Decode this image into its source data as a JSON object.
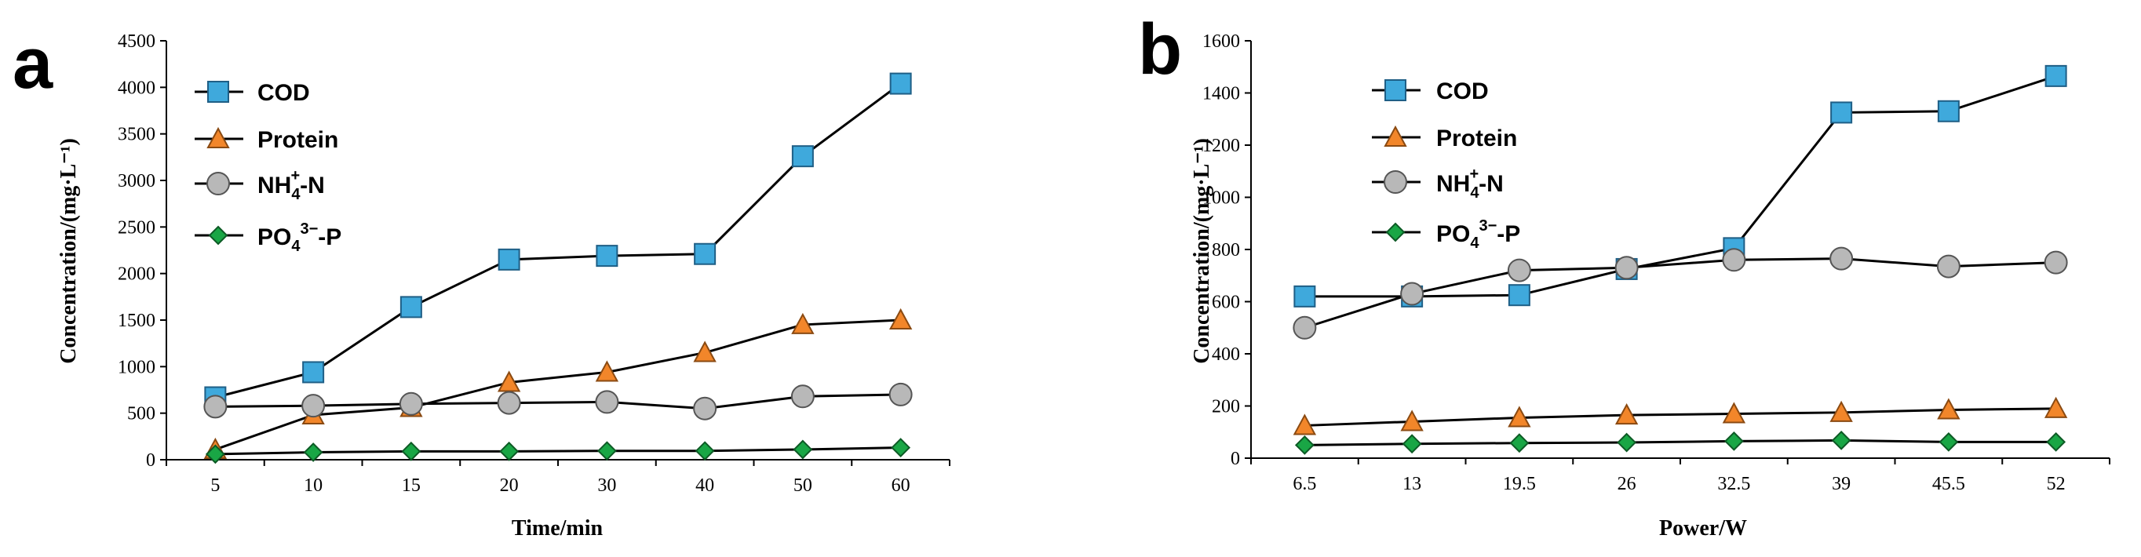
{
  "chart_data": [
    {
      "type": "line",
      "panel_letter": "a",
      "xlabel": "Time/min",
      "ylabel": "Concentration/(mg·L⁻¹)",
      "categories": [
        "5",
        "10",
        "15",
        "20",
        "30",
        "40",
        "50",
        "60"
      ],
      "ylim": [
        0,
        4500
      ],
      "yticks": [
        0,
        500,
        1000,
        1500,
        2000,
        2500,
        3000,
        3500,
        4000,
        4500
      ],
      "legend_position": "top-left",
      "series": [
        {
          "name": "COD",
          "marker": "square",
          "color": "#3fa9dc",
          "values": [
            670,
            940,
            1640,
            2150,
            2190,
            2210,
            3260,
            4040
          ]
        },
        {
          "name": "Protein",
          "marker": "triangle",
          "color": "#f2862a",
          "values": [
            110,
            480,
            560,
            830,
            940,
            1150,
            1450,
            1500
          ]
        },
        {
          "name": "NH4+-N",
          "marker": "circle",
          "color": "#b8b8b8",
          "values": [
            570,
            580,
            600,
            610,
            620,
            550,
            680,
            700
          ]
        },
        {
          "name": "PO43--P",
          "marker": "diamond",
          "color": "#19a645",
          "values": [
            60,
            80,
            90,
            90,
            95,
            95,
            110,
            130
          ]
        }
      ]
    },
    {
      "type": "line",
      "panel_letter": "b",
      "xlabel": "Power/W",
      "ylabel": "Concentration/(mg·L⁻¹)",
      "categories": [
        "6.5",
        "13",
        "19.5",
        "26",
        "32.5",
        "39",
        "45.5",
        "52"
      ],
      "ylim": [
        0,
        1600
      ],
      "yticks": [
        0,
        200,
        400,
        600,
        800,
        1000,
        1200,
        1400,
        1600
      ],
      "legend_position": "top-left",
      "series": [
        {
          "name": "COD",
          "marker": "square",
          "color": "#3fa9dc",
          "values": [
            620,
            620,
            625,
            725,
            805,
            1325,
            1330,
            1465
          ]
        },
        {
          "name": "Protein",
          "marker": "triangle",
          "color": "#f2862a",
          "values": [
            125,
            140,
            155,
            165,
            170,
            175,
            185,
            190
          ]
        },
        {
          "name": "NH4+-N",
          "marker": "circle",
          "color": "#b8b8b8",
          "values": [
            500,
            630,
            720,
            730,
            760,
            765,
            735,
            750
          ]
        },
        {
          "name": "PO43--P",
          "marker": "diamond",
          "color": "#19a645",
          "values": [
            50,
            55,
            58,
            60,
            65,
            68,
            62,
            62
          ]
        }
      ]
    }
  ],
  "legend_labels": {
    "cod": "COD",
    "protein": "Protein",
    "nh4_main": "NH",
    "nh4_sub": "4",
    "nh4_sup": "+",
    "nh4_tail": "-N",
    "po4_main": "PO",
    "po4_sub": "4",
    "po4_sup": "3−",
    "po4_tail": "-P"
  },
  "colors": {
    "cod": "#3fa9dc",
    "protein": "#f2862a",
    "nh4": "#b8b8b8",
    "po4": "#19a645",
    "line": "#000000"
  }
}
